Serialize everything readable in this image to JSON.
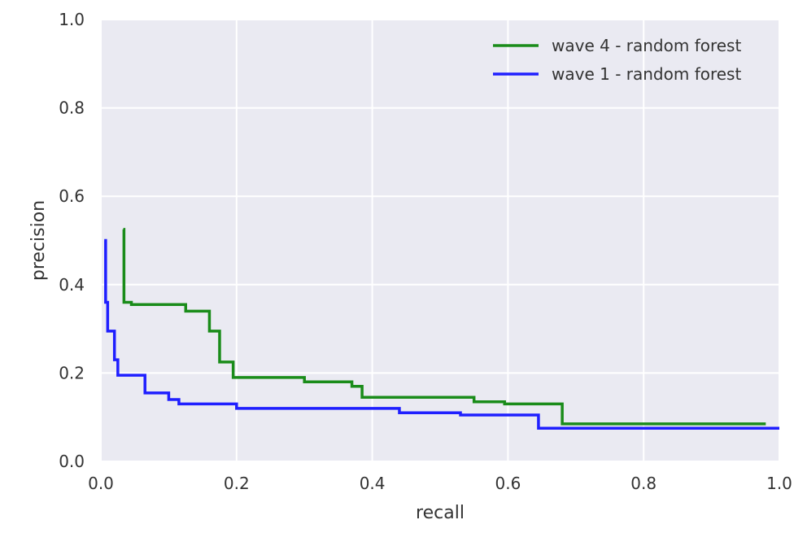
{
  "chart_data": {
    "type": "line",
    "title": "",
    "xlabel": "recall",
    "ylabel": "precision",
    "xlim": [
      0.0,
      1.0
    ],
    "ylim": [
      0.0,
      1.0
    ],
    "xticks": [
      "0.0",
      "0.2",
      "0.4",
      "0.6",
      "0.8",
      "1.0"
    ],
    "yticks": [
      "0.0",
      "0.2",
      "0.4",
      "0.6",
      "0.8",
      "1.0"
    ],
    "grid": true,
    "legend_position": "top-right",
    "background_color": "#EAEAF2",
    "grid_color": "#FFFFFF",
    "series": [
      {
        "name": "wave 4 - random forest",
        "color": "#1a8c1a",
        "step": true,
        "points": [
          [
            0.033,
            0.525
          ],
          [
            0.034,
            0.36
          ],
          [
            0.045,
            0.355
          ],
          [
            0.125,
            0.34
          ],
          [
            0.16,
            0.295
          ],
          [
            0.175,
            0.225
          ],
          [
            0.195,
            0.19
          ],
          [
            0.3,
            0.18
          ],
          [
            0.37,
            0.17
          ],
          [
            0.385,
            0.145
          ],
          [
            0.55,
            0.135
          ],
          [
            0.595,
            0.13
          ],
          [
            0.68,
            0.085
          ],
          [
            0.98,
            0.085
          ]
        ]
      },
      {
        "name": "wave 1 - random forest",
        "color": "#1f1fff",
        "step": true,
        "points": [
          [
            0.005,
            0.5
          ],
          [
            0.007,
            0.36
          ],
          [
            0.01,
            0.295
          ],
          [
            0.02,
            0.23
          ],
          [
            0.025,
            0.195
          ],
          [
            0.065,
            0.155
          ],
          [
            0.1,
            0.14
          ],
          [
            0.115,
            0.13
          ],
          [
            0.2,
            0.12
          ],
          [
            0.44,
            0.11
          ],
          [
            0.53,
            0.105
          ],
          [
            0.645,
            0.075
          ],
          [
            1.0,
            0.075
          ]
        ]
      }
    ]
  }
}
